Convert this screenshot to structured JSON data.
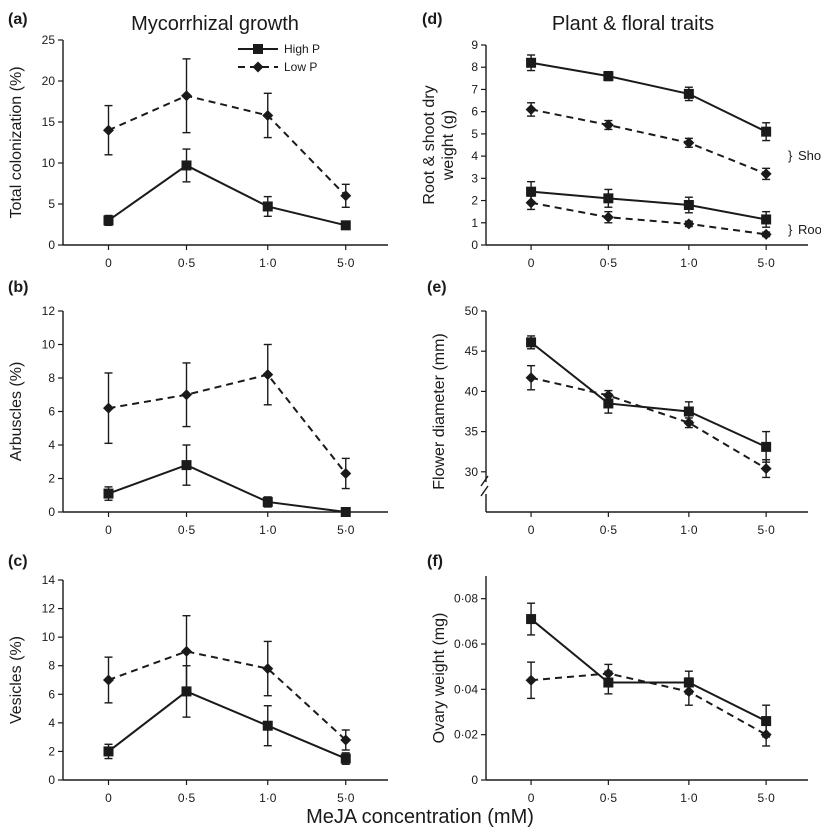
{
  "figure": {
    "col_titles": [
      "Mycorrhizal growth",
      "Plant & floral traits"
    ],
    "xlabel": "MeJA concentration (mM)"
  },
  "legend": {
    "high": "High P",
    "low": "Low P"
  },
  "chart_data": [
    {
      "panel": "(a)",
      "type": "line",
      "ylabel": "Total colonization (%)",
      "categories": [
        "0",
        "0·5",
        "1·0",
        "5·0"
      ],
      "ylim": [
        0,
        25
      ],
      "yticks": [
        "0",
        "5",
        "10",
        "15",
        "20",
        "25"
      ],
      "series": [
        {
          "name": "High P",
          "values": [
            3,
            9.7,
            4.7,
            2.4
          ],
          "errors": [
            0.6,
            2,
            1.2,
            0.4
          ]
        },
        {
          "name": "Low P",
          "values": [
            14,
            18.2,
            15.8,
            6
          ],
          "errors": [
            3,
            4.5,
            2.7,
            1.4
          ]
        }
      ]
    },
    {
      "panel": "(b)",
      "type": "line",
      "ylabel": "Arbuscles (%)",
      "categories": [
        "0",
        "0·5",
        "1·0",
        "5·0"
      ],
      "ylim": [
        0,
        12
      ],
      "yticks": [
        "0",
        "2",
        "4",
        "6",
        "8",
        "10",
        "12"
      ],
      "series": [
        {
          "name": "High P",
          "values": [
            1.1,
            2.8,
            0.6,
            0
          ],
          "errors": [
            0.4,
            1.2,
            0.3,
            0.05
          ]
        },
        {
          "name": "Low P",
          "values": [
            6.2,
            7,
            8.2,
            2.3
          ],
          "errors": [
            2.1,
            1.9,
            1.8,
            0.9
          ]
        }
      ]
    },
    {
      "panel": "(c)",
      "type": "line",
      "ylabel": "Vesicles (%)",
      "categories": [
        "0",
        "0·5",
        "1·0",
        "5·0"
      ],
      "ylim": [
        0,
        14
      ],
      "yticks": [
        "0",
        "2",
        "4",
        "6",
        "8",
        "10",
        "12",
        "14"
      ],
      "series": [
        {
          "name": "High P",
          "values": [
            2,
            6.2,
            3.8,
            1.5
          ],
          "errors": [
            0.5,
            1.8,
            1.4,
            0.4
          ]
        },
        {
          "name": "Low P",
          "values": [
            7,
            9,
            7.8,
            2.8
          ],
          "errors": [
            1.6,
            2.5,
            1.9,
            0.7
          ]
        }
      ]
    },
    {
      "panel": "(d)",
      "type": "line",
      "ylabel": "Root & shoot dry weight (g)",
      "categories": [
        "0",
        "0·5",
        "1·0",
        "5·0"
      ],
      "ylim": [
        0,
        9
      ],
      "yticks": [
        "0",
        "1",
        "2",
        "3",
        "4",
        "5",
        "6",
        "7",
        "8",
        "9"
      ],
      "annotations": [
        "Shoot",
        "Root"
      ],
      "series": [
        {
          "name": "High P",
          "group": "Shoot",
          "values": [
            8.2,
            7.6,
            6.8,
            5.1
          ],
          "errors": [
            0.35,
            0.2,
            0.3,
            0.4
          ]
        },
        {
          "name": "Low P",
          "group": "Shoot",
          "values": [
            6.1,
            5.4,
            4.6,
            3.2
          ],
          "errors": [
            0.3,
            0.2,
            0.2,
            0.25
          ]
        },
        {
          "name": "High P",
          "group": "Root",
          "values": [
            2.4,
            2.1,
            1.8,
            1.15
          ],
          "errors": [
            0.45,
            0.4,
            0.35,
            0.35
          ]
        },
        {
          "name": "Low P",
          "group": "Root",
          "values": [
            1.9,
            1.25,
            0.95,
            0.48
          ],
          "errors": [
            0.3,
            0.25,
            0.12,
            0.1
          ]
        }
      ]
    },
    {
      "panel": "(e)",
      "type": "line",
      "ylabel": "Flower diameter (mm)",
      "categories": [
        "0",
        "0·5",
        "1·0",
        "5·0"
      ],
      "ylim": [
        25,
        50
      ],
      "axis_break": true,
      "yticks": [
        "30",
        "35",
        "40",
        "45",
        "50"
      ],
      "series": [
        {
          "name": "High P",
          "values": [
            46.1,
            38.5,
            37.5,
            33.1
          ],
          "errors": [
            0.8,
            1.2,
            1.2,
            1.9
          ]
        },
        {
          "name": "Low P",
          "values": [
            41.7,
            39.5,
            36.1,
            30.4
          ],
          "errors": [
            1.5,
            0.6,
            0.6,
            1.1
          ]
        }
      ]
    },
    {
      "panel": "(f)",
      "type": "line",
      "ylabel": "Ovary weight (mg)",
      "categories": [
        "0",
        "0·5",
        "1·0",
        "5·0"
      ],
      "ylim": [
        0,
        0.09
      ],
      "yticks": [
        "0",
        "0·02",
        "0·04",
        "0·06",
        "0·08"
      ],
      "series": [
        {
          "name": "High P",
          "values": [
            0.071,
            0.043,
            0.043,
            0.026
          ],
          "errors": [
            0.007,
            0.005,
            0.005,
            0.007
          ]
        },
        {
          "name": "Low P",
          "values": [
            0.044,
            0.047,
            0.039,
            0.02
          ],
          "errors": [
            0.008,
            0.004,
            0.006,
            0.005
          ]
        }
      ]
    }
  ]
}
